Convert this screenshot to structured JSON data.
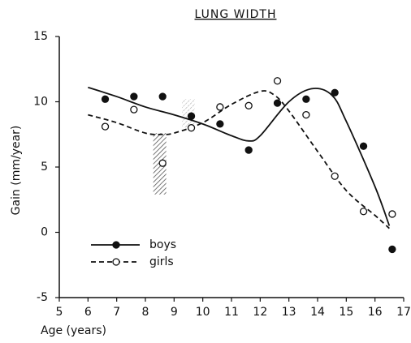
{
  "chart_data": {
    "type": "scatter",
    "title": "LUNG WIDTH",
    "xlabel": "Age (years)",
    "ylabel": "Gain (mm/year)",
    "xlim": [
      5,
      17
    ],
    "ylim": [
      -5,
      15
    ],
    "xticks": [
      5,
      6,
      7,
      8,
      9,
      10,
      11,
      12,
      13,
      14,
      15,
      16,
      17
    ],
    "yticks": [
      -5,
      0,
      5,
      10,
      15
    ],
    "legend": "lower left",
    "series": [
      {
        "name": "boys",
        "color": "#111111",
        "filled": true,
        "dash": false,
        "x": [
          6.6,
          7.6,
          8.6,
          9.6,
          10.6,
          11.6,
          12.6,
          13.6,
          14.6,
          15.6,
          16.6
        ],
        "values": [
          10.2,
          10.4,
          10.4,
          8.9,
          8.3,
          6.3,
          9.9,
          10.2,
          10.7,
          6.6,
          -1.3
        ],
        "curve_x": [
          6,
          7,
          8,
          9,
          10,
          11,
          11.6,
          12,
          13,
          13.8,
          14.5,
          15,
          16,
          16.5
        ],
        "curve_y": [
          11.1,
          10.4,
          9.6,
          9.0,
          8.3,
          7.4,
          7.0,
          7.4,
          10.0,
          11.0,
          10.5,
          8.5,
          3.5,
          0.5
        ]
      },
      {
        "name": "girls",
        "color": "#111111",
        "filled": false,
        "dash": true,
        "x": [
          6.6,
          7.6,
          8.6,
          9.6,
          10.6,
          11.6,
          12.6,
          13.6,
          14.6,
          15.6,
          16.6
        ],
        "values": [
          8.1,
          9.4,
          5.3,
          8.0,
          9.6,
          9.7,
          11.6,
          9.0,
          4.3,
          1.6,
          1.4
        ],
        "curve_x": [
          6,
          7,
          8,
          8.6,
          9,
          10,
          11,
          12,
          12.5,
          13,
          14,
          15,
          16,
          16.5
        ],
        "curve_y": [
          9.0,
          8.4,
          7.6,
          7.5,
          7.6,
          8.4,
          9.8,
          10.8,
          10.5,
          9.3,
          6.2,
          3.2,
          1.3,
          0.3
        ]
      }
    ],
    "ranges": [
      {
        "x": 8.5,
        "low": 2.9,
        "high": 7.6
      },
      {
        "x": 9.5,
        "low": 8.0,
        "high": 10.2
      }
    ]
  }
}
